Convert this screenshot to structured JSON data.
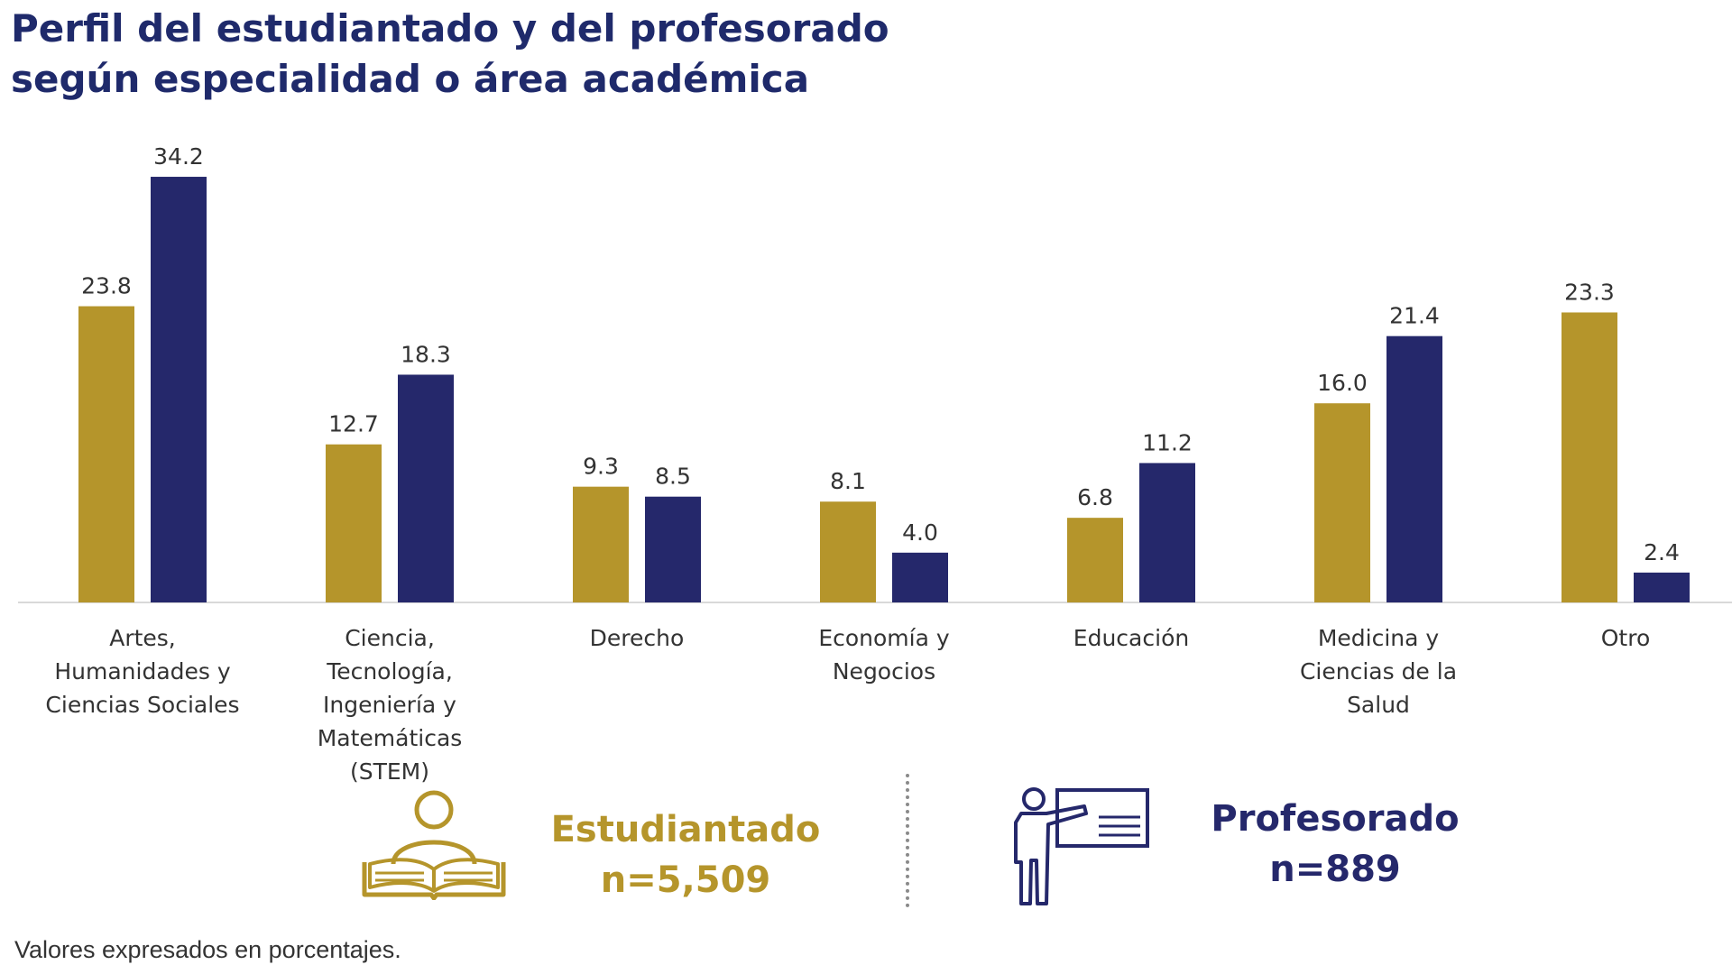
{
  "title": {
    "line1": "Perfil del estudiantado y del profesorado",
    "line2": "según especialidad o área académica"
  },
  "colors": {
    "students": "#b5952b",
    "faculty": "#25286b",
    "title": "#1f2a6b",
    "axis": "#d9d9d9",
    "label": "#333333"
  },
  "chart_data": {
    "type": "bar",
    "categories": [
      [
        "Artes,",
        "Humanidades y",
        "Ciencias Sociales"
      ],
      [
        "Ciencia,",
        "Tecnología,",
        "Ingeniería y",
        "Matemáticas",
        "(STEM)"
      ],
      [
        "Derecho"
      ],
      [
        "Economía y",
        "Negocios"
      ],
      [
        "Educación"
      ],
      [
        "Medicina y",
        "Ciencias de la",
        "Salud"
      ],
      [
        "Otro"
      ]
    ],
    "series": [
      {
        "name": "Estudiantado",
        "values": [
          23.8,
          12.7,
          9.3,
          8.1,
          6.8,
          16.0,
          23.3
        ],
        "labels": [
          "23.8",
          "12.7",
          "9.3",
          "8.1",
          "6.8",
          "16.0",
          "23.3"
        ]
      },
      {
        "name": "Profesorado",
        "values": [
          34.2,
          18.3,
          8.5,
          4.0,
          11.2,
          21.4,
          2.4
        ],
        "labels": [
          "34.2",
          "18.3",
          "8.5",
          "4.0",
          "11.2",
          "21.4",
          "2.4"
        ]
      }
    ],
    "ylim": [
      0,
      36
    ],
    "grid": false,
    "legend": "bottom"
  },
  "legend": {
    "students": {
      "label": "Estudiantado",
      "n": "n=5,509",
      "icon": "student-reading-book-icon"
    },
    "faculty": {
      "label": "Profesorado",
      "n": "n=889",
      "icon": "teacher-at-whiteboard-icon"
    }
  },
  "footnote": "Valores expresados en porcentajes."
}
